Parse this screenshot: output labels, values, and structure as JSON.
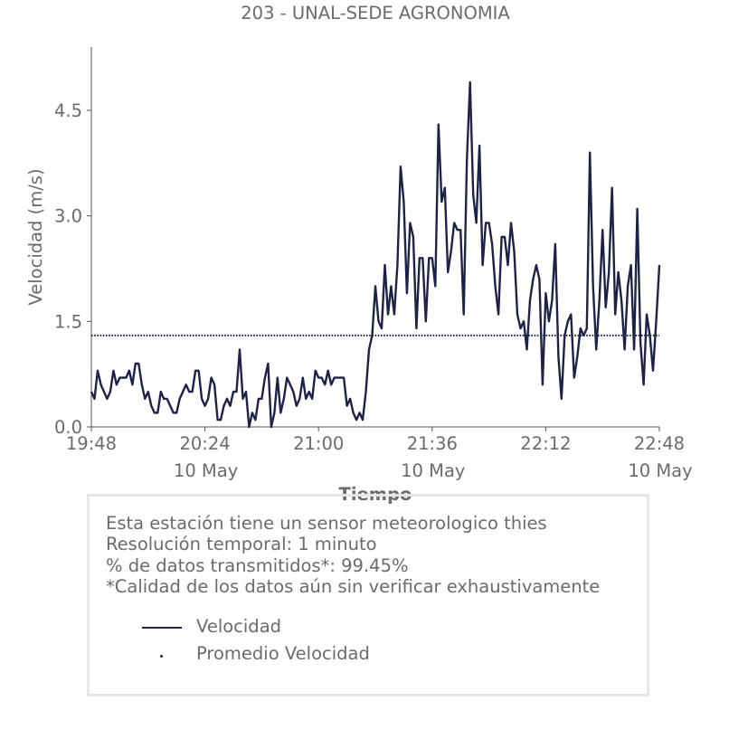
{
  "chart_data": {
    "type": "line",
    "title": "203 - UNAL-SEDE AGRONOMIA",
    "xlabel": "Tiempo",
    "ylabel": "Velocidad (m/s)",
    "ylim": [
      0,
      5.4
    ],
    "xlim": [
      "19:48",
      "22:48"
    ],
    "y_ticks": [
      "0.0",
      "1.5",
      "3.0",
      "4.5"
    ],
    "x_ticks": [
      {
        "time": "19:48",
        "date": ""
      },
      {
        "time": "20:24",
        "date": "10 May"
      },
      {
        "time": "21:00",
        "date": ""
      },
      {
        "time": "21:36",
        "date": "10 May"
      },
      {
        "time": "22:12",
        "date": ""
      },
      {
        "time": "22:48",
        "date": "10 May"
      }
    ],
    "grid": false,
    "start_time": "19:48",
    "sample_interval_minutes": 1,
    "series": [
      {
        "name": "Velocidad",
        "color": "#1f2247",
        "style": "solid",
        "values": [
          0.5,
          0.4,
          0.8,
          0.6,
          0.5,
          0.4,
          0.5,
          0.8,
          0.6,
          0.7,
          0.7,
          0.7,
          0.8,
          0.6,
          0.9,
          0.9,
          0.6,
          0.4,
          0.5,
          0.3,
          0.2,
          0.2,
          0.5,
          0.4,
          0.4,
          0.3,
          0.2,
          0.2,
          0.4,
          0.5,
          0.6,
          0.5,
          0.5,
          0.8,
          0.8,
          0.4,
          0.3,
          0.4,
          0.7,
          0.6,
          0.1,
          0.1,
          0.3,
          0.4,
          0.3,
          0.5,
          0.5,
          1.1,
          0.4,
          0.5,
          0.0,
          0.2,
          0.1,
          0.4,
          0.4,
          0.7,
          0.9,
          0.0,
          0.2,
          0.7,
          0.2,
          0.4,
          0.7,
          0.6,
          0.5,
          0.3,
          0.4,
          0.7,
          0.4,
          0.5,
          0.4,
          0.8,
          0.7,
          0.7,
          0.6,
          0.8,
          0.6,
          0.7,
          0.7,
          0.7,
          0.7,
          0.3,
          0.4,
          0.2,
          0.1,
          0.2,
          0.1,
          0.5,
          1.1,
          1.3,
          2.0,
          1.5,
          1.4,
          2.3,
          1.6,
          2.0,
          1.6,
          2.3,
          3.7,
          3.2,
          1.9,
          2.9,
          2.7,
          1.4,
          2.4,
          2.4,
          1.5,
          2.4,
          2.4,
          2.0,
          4.3,
          3.2,
          3.4,
          2.2,
          2.5,
          2.9,
          2.8,
          2.8,
          1.6,
          3.8,
          4.9,
          3.3,
          2.9,
          4.0,
          2.3,
          2.9,
          2.9,
          2.6,
          2.0,
          1.6,
          2.7,
          2.7,
          2.3,
          2.9,
          2.5,
          1.6,
          1.4,
          1.5,
          1.1,
          1.8,
          2.1,
          2.3,
          2.1,
          0.6,
          1.9,
          1.5,
          1.8,
          2.6,
          1.0,
          0.4,
          1.3,
          1.5,
          1.6,
          0.7,
          1.0,
          1.4,
          1.3,
          1.4,
          3.9,
          2.0,
          1.1,
          1.8,
          2.8,
          1.7,
          2.2,
          3.4,
          1.6,
          2.2,
          1.8,
          1.1,
          2.0,
          2.3,
          1.1,
          3.1,
          1.2,
          0.6,
          1.6,
          1.3,
          0.8,
          1.5,
          2.3
        ]
      },
      {
        "name": "Promedio Velocidad",
        "color": "#1f2247",
        "style": "dotted",
        "values": [
          1.3,
          1.3
        ]
      }
    ]
  },
  "info": {
    "line1": "Esta estación tiene un sensor meteorologico thies",
    "line2": "Resolución temporal: 1 minuto",
    "line3": "% de datos transmitidos*: 99.45%",
    "line4": "*Calidad de los datos aún sin verificar exhaustivamente"
  },
  "legend": {
    "item1": "Velocidad",
    "item2": "Promedio Velocidad"
  }
}
